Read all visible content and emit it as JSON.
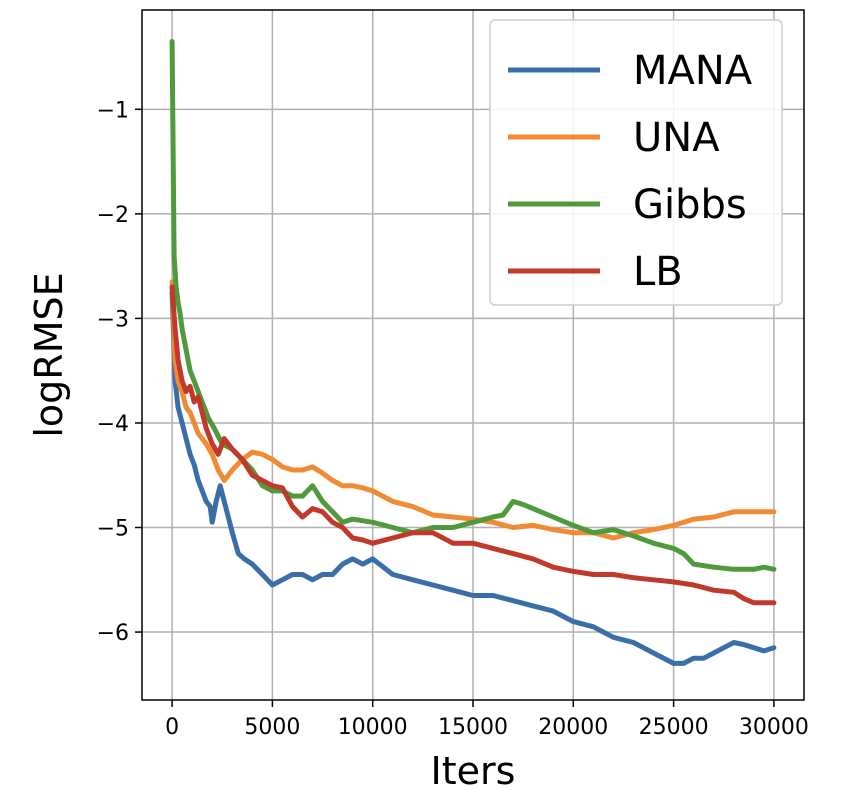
{
  "chart_data": {
    "type": "line",
    "xlabel": "Iters",
    "ylabel": "logRMSE",
    "xlim": [
      -1500,
      31500
    ],
    "ylim": [
      -6.65,
      -0.05
    ],
    "xticks": [
      0,
      5000,
      10000,
      15000,
      20000,
      25000,
      30000
    ],
    "xtick_labels": [
      "0",
      "5000",
      "10000",
      "15000",
      "20000",
      "25000",
      "30000"
    ],
    "yticks": [
      -1,
      -2,
      -3,
      -4,
      -5,
      -6
    ],
    "ytick_labels": [
      "−1",
      "−2",
      "−3",
      "−4",
      "−5",
      "−6"
    ],
    "grid": true,
    "legend_position": "top-right",
    "series": [
      {
        "name": "MANA",
        "color": "#3a6ea8",
        "x": [
          0,
          150,
          300,
          500,
          700,
          900,
          1100,
          1300,
          1500,
          1700,
          1900,
          2000,
          2200,
          2400,
          2600,
          2800,
          3000,
          3300,
          3600,
          4000,
          4500,
          5000,
          5500,
          6000,
          6500,
          7000,
          7500,
          8000,
          8500,
          9000,
          9500,
          10000,
          11000,
          12000,
          13000,
          14000,
          15000,
          16000,
          17000,
          18000,
          19000,
          20000,
          21000,
          22000,
          23000,
          24000,
          25000,
          25500,
          26000,
          26500,
          27000,
          27500,
          28000,
          28500,
          29000,
          29500,
          30000
        ],
        "values": [
          -2.75,
          -3.6,
          -3.85,
          -4.0,
          -4.15,
          -4.3,
          -4.4,
          -4.55,
          -4.65,
          -4.75,
          -4.8,
          -4.95,
          -4.75,
          -4.6,
          -4.75,
          -4.9,
          -5.05,
          -5.25,
          -5.3,
          -5.35,
          -5.45,
          -5.55,
          -5.5,
          -5.45,
          -5.45,
          -5.5,
          -5.45,
          -5.45,
          -5.35,
          -5.3,
          -5.35,
          -5.3,
          -5.45,
          -5.5,
          -5.55,
          -5.6,
          -5.65,
          -5.65,
          -5.7,
          -5.75,
          -5.8,
          -5.9,
          -5.95,
          -6.05,
          -6.1,
          -6.2,
          -6.3,
          -6.3,
          -6.25,
          -6.25,
          -6.2,
          -6.15,
          -6.1,
          -6.12,
          -6.15,
          -6.18,
          -6.15
        ]
      },
      {
        "name": "UNA",
        "color": "#f08a33",
        "x": [
          0,
          150,
          300,
          500,
          700,
          900,
          1100,
          1300,
          1500,
          1700,
          2000,
          2300,
          2600,
          3000,
          3500,
          4000,
          4500,
          5000,
          5500,
          6000,
          6500,
          7000,
          7500,
          8000,
          8500,
          9000,
          9500,
          10000,
          11000,
          12000,
          13000,
          14000,
          15000,
          16000,
          17000,
          18000,
          19000,
          20000,
          21000,
          22000,
          23000,
          24000,
          25000,
          26000,
          27000,
          28000,
          29000,
          30000
        ],
        "values": [
          -2.65,
          -3.4,
          -3.6,
          -3.7,
          -3.85,
          -3.9,
          -4.0,
          -4.1,
          -4.15,
          -4.2,
          -4.3,
          -4.45,
          -4.55,
          -4.45,
          -4.35,
          -4.28,
          -4.3,
          -4.35,
          -4.42,
          -4.45,
          -4.45,
          -4.42,
          -4.48,
          -4.55,
          -4.6,
          -4.6,
          -4.62,
          -4.65,
          -4.75,
          -4.8,
          -4.88,
          -4.9,
          -4.92,
          -4.95,
          -5.0,
          -4.98,
          -5.02,
          -5.05,
          -5.05,
          -5.1,
          -5.05,
          -5.02,
          -4.98,
          -4.92,
          -4.9,
          -4.85,
          -4.85,
          -4.85
        ]
      },
      {
        "name": "Gibbs",
        "color": "#4e9a3c",
        "x": [
          0,
          100,
          200,
          300,
          400,
          500,
          700,
          900,
          1100,
          1300,
          1500,
          1800,
          2100,
          2500,
          3000,
          3500,
          4000,
          4500,
          5000,
          5500,
          6000,
          6500,
          7000,
          7500,
          8000,
          8500,
          9000,
          10000,
          11000,
          12000,
          13000,
          14000,
          15000,
          16000,
          16500,
          17000,
          17500,
          18000,
          19000,
          20000,
          21000,
          22000,
          23000,
          24000,
          25000,
          25500,
          26000,
          27000,
          28000,
          29000,
          29500,
          30000
        ],
        "values": [
          -0.35,
          -2.4,
          -2.7,
          -2.85,
          -2.95,
          -3.1,
          -3.3,
          -3.5,
          -3.6,
          -3.7,
          -3.8,
          -3.95,
          -4.05,
          -4.2,
          -4.25,
          -4.35,
          -4.45,
          -4.6,
          -4.65,
          -4.65,
          -4.7,
          -4.7,
          -4.6,
          -4.75,
          -4.85,
          -4.95,
          -4.92,
          -4.95,
          -5.0,
          -5.05,
          -5.0,
          -5.0,
          -4.95,
          -4.9,
          -4.88,
          -4.75,
          -4.78,
          -4.82,
          -4.9,
          -4.98,
          -5.05,
          -5.02,
          -5.08,
          -5.15,
          -5.2,
          -5.25,
          -5.35,
          -5.38,
          -5.4,
          -5.4,
          -5.38,
          -5.4
        ]
      },
      {
        "name": "LB",
        "color": "#c0392b",
        "x": [
          0,
          150,
          300,
          500,
          700,
          900,
          1100,
          1300,
          1500,
          1700,
          2000,
          2300,
          2600,
          3000,
          3500,
          4000,
          4500,
          5000,
          5500,
          6000,
          6500,
          7000,
          7500,
          8000,
          8500,
          9000,
          9500,
          10000,
          11000,
          12000,
          13000,
          14000,
          15000,
          16000,
          17000,
          18000,
          19000,
          20000,
          21000,
          22000,
          23000,
          24000,
          25000,
          26000,
          27000,
          28000,
          28500,
          29000,
          29500,
          30000
        ],
        "values": [
          -2.7,
          -3.1,
          -3.4,
          -3.6,
          -3.7,
          -3.65,
          -3.8,
          -3.75,
          -3.9,
          -4.05,
          -4.2,
          -4.3,
          -4.15,
          -4.25,
          -4.35,
          -4.5,
          -4.55,
          -4.6,
          -4.62,
          -4.8,
          -4.9,
          -4.82,
          -4.85,
          -4.95,
          -5.0,
          -5.1,
          -5.12,
          -5.15,
          -5.1,
          -5.05,
          -5.05,
          -5.15,
          -5.15,
          -5.2,
          -5.25,
          -5.3,
          -5.38,
          -5.42,
          -5.45,
          -5.45,
          -5.48,
          -5.5,
          -5.52,
          -5.55,
          -5.6,
          -5.62,
          -5.68,
          -5.72,
          -5.72,
          -5.72
        ]
      }
    ]
  }
}
